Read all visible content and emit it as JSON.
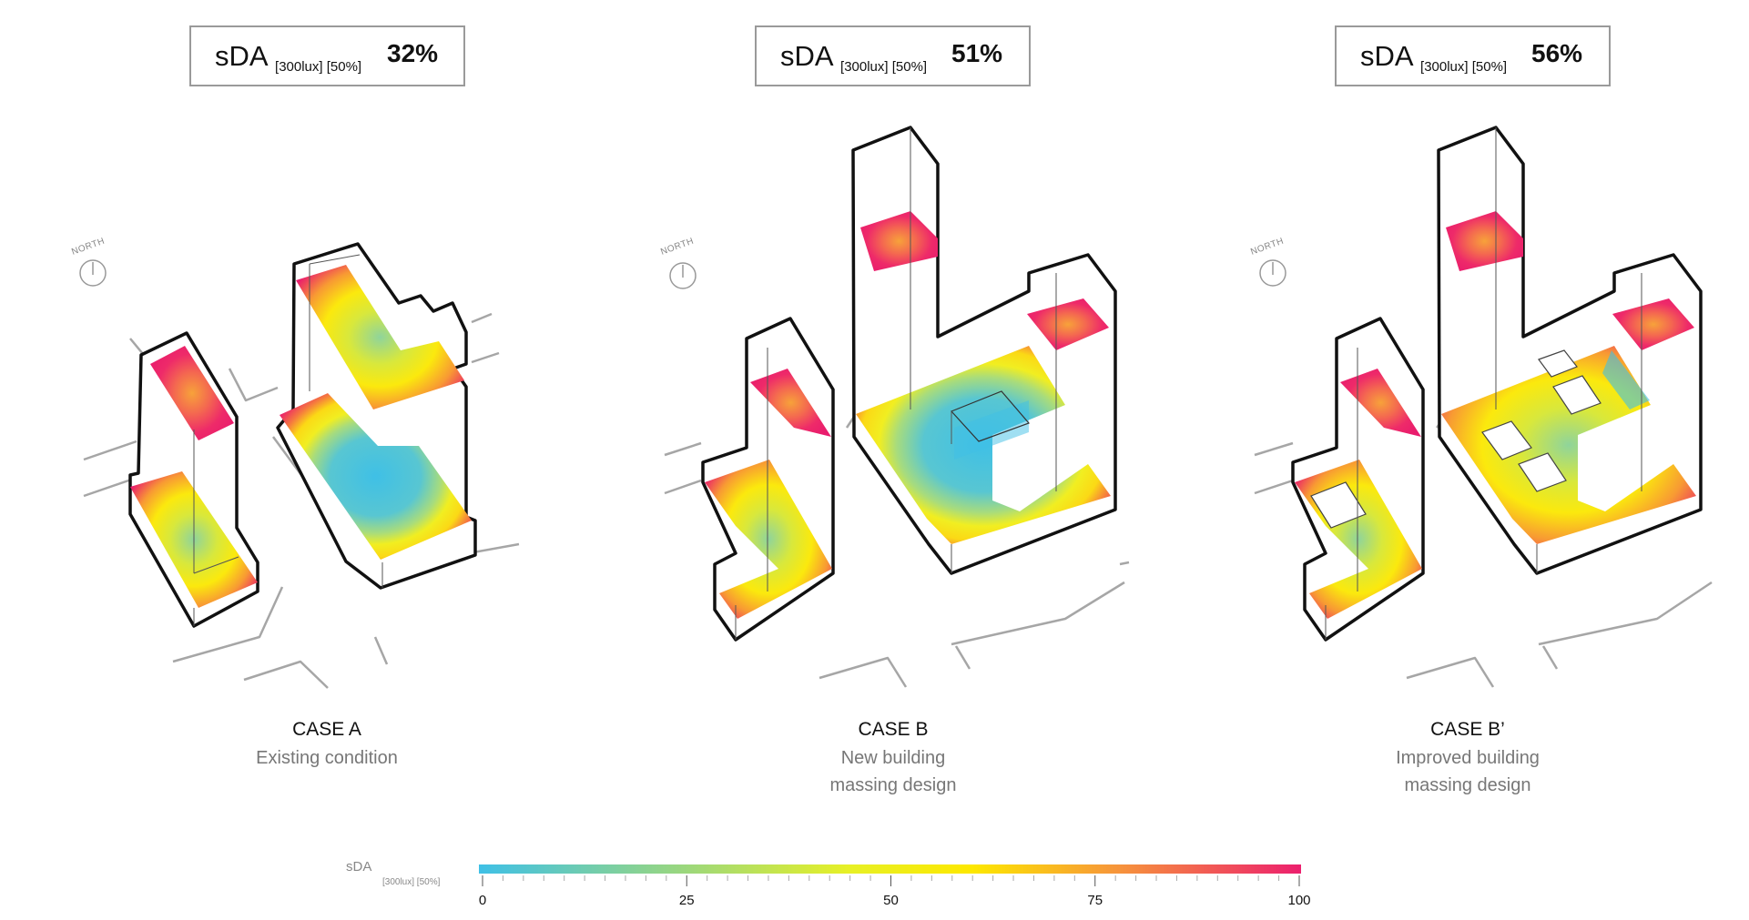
{
  "cases": [
    {
      "metric": {
        "label": "sDA",
        "subscript": "[300lux] [50%]",
        "value": "32%"
      },
      "title": "CASE A",
      "description": [
        "Existing condition"
      ],
      "north_label": "NORTH"
    },
    {
      "metric": {
        "label": "sDA",
        "subscript": "[300lux] [50%]",
        "value": "51%"
      },
      "title": "CASE B",
      "description": [
        "New building",
        "massing design"
      ],
      "north_label": "NORTH"
    },
    {
      "metric": {
        "label": "sDA",
        "subscript": "[300lux] [50%]",
        "value": "56%"
      },
      "title": "CASE B’",
      "description": [
        "Improved building",
        "massing design"
      ],
      "north_label": "NORTH"
    }
  ],
  "legend": {
    "label": "sDA",
    "subscript": "[300lux] [50%]",
    "ticks": [
      "0",
      "25",
      "50",
      "75",
      "100"
    ],
    "min": 0,
    "max": 100,
    "colors": [
      "#3fc0e6",
      "#e7f026",
      "#fde800",
      "#f6933c",
      "#ec1f6e"
    ]
  }
}
